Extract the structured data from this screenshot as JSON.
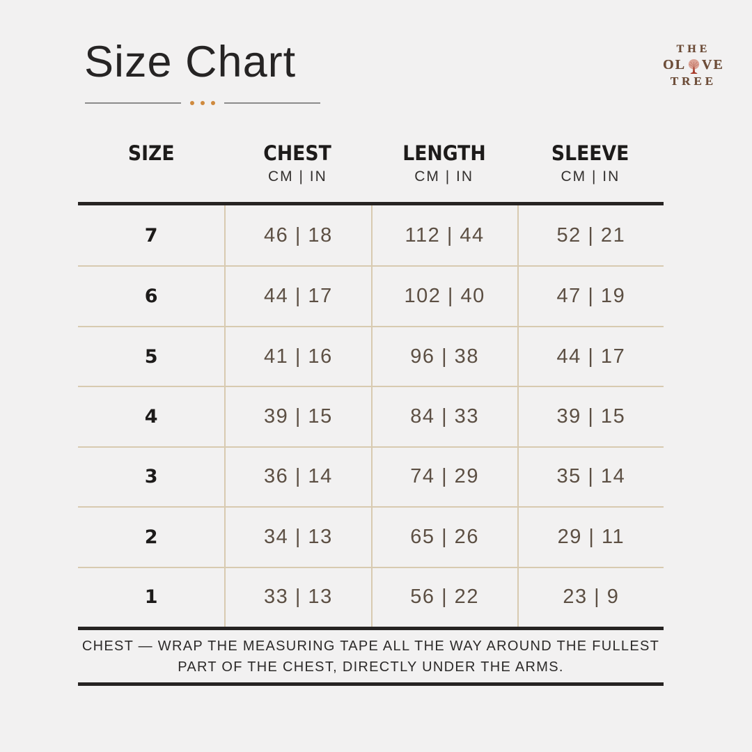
{
  "page": {
    "background_color": "#f2f1f1"
  },
  "header": {
    "title": "Size Chart",
    "underline_dot_color": "#cf8a3e"
  },
  "logo": {
    "line1": "THE",
    "line2_left": "OL",
    "line2_right": "VE",
    "line3": "TREE",
    "color": "#6d4c37"
  },
  "chart_data": {
    "type": "table",
    "title": "Size Chart",
    "columns": [
      {
        "label": "SIZE",
        "units": ""
      },
      {
        "label": "CHEST",
        "units": "CM | IN"
      },
      {
        "label": "LENGTH",
        "units": "CM | IN"
      },
      {
        "label": "SLEEVE",
        "units": "CM | IN"
      }
    ],
    "rows": [
      {
        "size": "7",
        "chest": "46 | 18",
        "length": "112 | 44",
        "sleeve": "52 | 21"
      },
      {
        "size": "6",
        "chest": "44 | 17",
        "length": "102 | 40",
        "sleeve": "47 | 19"
      },
      {
        "size": "5",
        "chest": "41 | 16",
        "length": "96 | 38",
        "sleeve": "44 | 17"
      },
      {
        "size": "4",
        "chest": "39 | 15",
        "length": "84 | 33",
        "sleeve": "39 | 15"
      },
      {
        "size": "3",
        "chest": "36 | 14",
        "length": "74 | 29",
        "sleeve": "35 | 14"
      },
      {
        "size": "2",
        "chest": "34 | 13",
        "length": "65 | 26",
        "sleeve": "29 | 11"
      },
      {
        "size": "1",
        "chest": "33 | 13",
        "length": "56 | 22",
        "sleeve": "23 | 9"
      }
    ]
  },
  "footer": {
    "note_line1": "CHEST — WRAP THE MEASURING TAPE ALL THE WAY AROUND THE FULLEST",
    "note_line2": "PART OF THE CHEST, DIRECTLY UNDER THE ARMS."
  },
  "colors": {
    "rule_dark": "#262322",
    "divider_tan": "#d8cab0",
    "value_text": "#5c4f43",
    "heading_text": "#1d1b1a",
    "underline_gray": "#8b8b8b"
  }
}
